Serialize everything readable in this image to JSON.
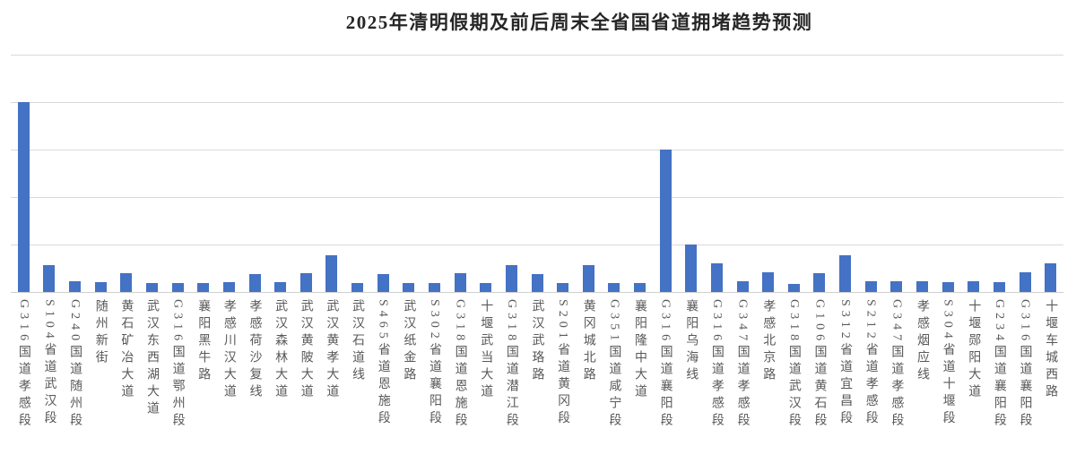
{
  "chart_data": {
    "type": "bar",
    "title": "2025年清明假期及前后周末全省国省道拥堵趋势预测",
    "categories": [
      "G316国道孝感段",
      "S104省道武汉段",
      "G240国道随州段",
      "随州新街",
      "黄石矿冶大道",
      "武汉东西湖大道",
      "G316国道鄂州段",
      "襄阳黑牛路",
      "孝感川汉大道",
      "孝感荷沙复线",
      "武汉森林大道",
      "武汉黄陂大道",
      "武汉黄孝大道",
      "武汉石道线",
      "S465省道恩施段",
      "武汉纸金路",
      "S302省道襄阳段",
      "G318国道恩施段",
      "十堰武当大道",
      "G318国道潜江段",
      "武汉武珞路",
      "S201省道黄冈段",
      "黄冈城北路",
      "G351国道咸宁段",
      "襄阳隆中大道",
      "G316国道襄阳段",
      "襄阳乌海线",
      "G316国道孝感段",
      "G347国道孝感段",
      "孝感北京路",
      "G318国道武汉段",
      "G106国道黄石段",
      "S312省道宜昌段",
      "S212省道孝感段",
      "G347国道孝感段",
      "孝感烟应线",
      "S304省道十堰段",
      "十堰郧阳大道",
      "G234国道襄阳段",
      "G316国道襄阳段",
      "十堰车城西路"
    ],
    "values": [
      4.0,
      0.57,
      0.22,
      0.21,
      0.4,
      0.19,
      0.19,
      0.19,
      0.21,
      0.38,
      0.2,
      0.4,
      0.78,
      0.19,
      0.37,
      0.19,
      0.19,
      0.4,
      0.19,
      0.57,
      0.37,
      0.19,
      0.57,
      0.19,
      0.19,
      3.0,
      1.0,
      0.6,
      0.22,
      0.41,
      0.17,
      0.4,
      0.78,
      0.22,
      0.22,
      0.22,
      0.21,
      0.22,
      0.21,
      0.41,
      0.6
    ],
    "xlabel": "",
    "ylabel": "",
    "ylim": [
      0,
      5
    ],
    "gridline_interval": 1,
    "y_tick_labels_visible": false,
    "grid": true,
    "legend": false,
    "x_label_style": "vertical, CJK upright, Latin rotated 90° clockwise",
    "series_color": "#4472C4",
    "gridline_color": "#D9D9D9",
    "axis_line_color": "#CFCFCF",
    "label_color": "#595959",
    "title_color": "#262626"
  }
}
